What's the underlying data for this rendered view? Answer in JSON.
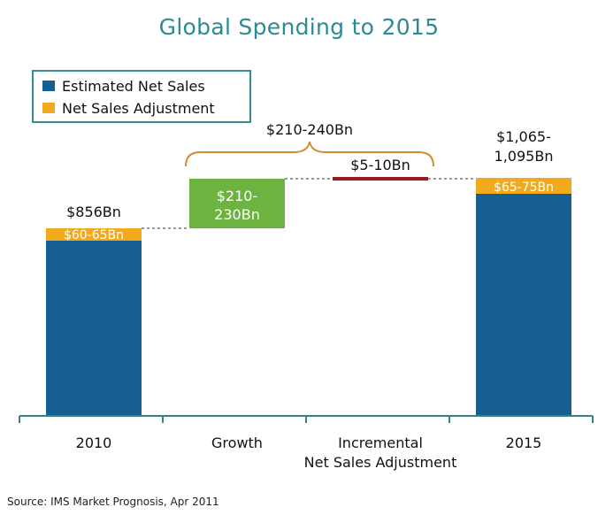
{
  "chart_data": {
    "type": "bar",
    "title": "Global Spending to 2015",
    "categories": [
      "2010",
      "Growth",
      "Incremental\nNet Sales Adjustment",
      "2015"
    ],
    "legend": [
      {
        "name": "Estimated Net Sales",
        "color": "#155f91"
      },
      {
        "name": "Net Sales Adjustment",
        "color": "#f3a91c"
      }
    ],
    "colors": {
      "net_sales": "#155f91",
      "adjustment": "#f3a91c",
      "growth": "#6db33f",
      "incremental": "#9b1c1c",
      "bracket": "#d48a2e",
      "axis": "#3a7e8a"
    },
    "bars": {
      "b2010": {
        "value_label": "$856Bn",
        "adjustment_label": "$60-65Bn"
      },
      "growth": {
        "label_line1": "$210-",
        "label_line2": "230Bn"
      },
      "incremental": {
        "label": "$5-10Bn"
      },
      "b2015": {
        "value_label_line1": "$1,065-",
        "value_label_line2": "1,095Bn",
        "adjustment_label": "$65-75Bn"
      }
    },
    "bracket_label": "$210-240Bn",
    "x_labels": {
      "c1": "2010",
      "c2": "Growth",
      "c3_line1": "Incremental",
      "c3_line2": "Net Sales Adjustment",
      "c4": "2015"
    }
  },
  "source": "Source: IMS Market Prognosis, Apr 2011"
}
